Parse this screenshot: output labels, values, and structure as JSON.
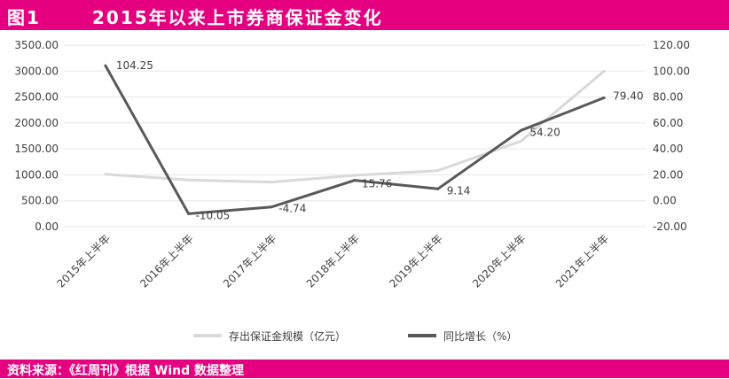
{
  "header": {
    "figure_label": "图1",
    "title": "2015年以来上市券商保证金变化"
  },
  "footer": {
    "source": "资料来源：《红周刊》根据 Wind 数据整理"
  },
  "chart_data": {
    "type": "line",
    "title": "2015年以来上市券商保证金变化",
    "categories": [
      "2015年上半年",
      "2016年上半年",
      "2017年上半年",
      "2018年上半年",
      "2019年上半年",
      "2020年上半年",
      "2021年上半年"
    ],
    "series": [
      {
        "name": "存出保证金规模（亿元）",
        "axis": "left",
        "color": "#d9d9d9",
        "values": [
          1010,
          900,
          860,
          990,
          1080,
          1650,
          3000
        ],
        "data_labels": []
      },
      {
        "name": "同比增长（%）",
        "axis": "right",
        "color": "#595959",
        "values": [
          104.25,
          -10.05,
          -4.74,
          15.76,
          9.14,
          54.2,
          79.4
        ],
        "data_labels": [
          "104.25",
          "-10.05",
          "-4.74",
          "15.76",
          "9.14",
          "54.20",
          "79.40"
        ]
      }
    ],
    "y_left": {
      "ylim": [
        0,
        3500
      ],
      "ticks": [
        "0.00",
        "500.00",
        "1000.00",
        "1500.00",
        "2000.00",
        "2500.00",
        "3000.00",
        "3500.00"
      ]
    },
    "y_right": {
      "ylim": [
        -20,
        120
      ],
      "ticks": [
        "-20.00",
        "0.00",
        "20.00",
        "40.00",
        "60.00",
        "80.00",
        "100.00",
        "120.00"
      ]
    },
    "grid": true,
    "legend_position": "bottom"
  }
}
